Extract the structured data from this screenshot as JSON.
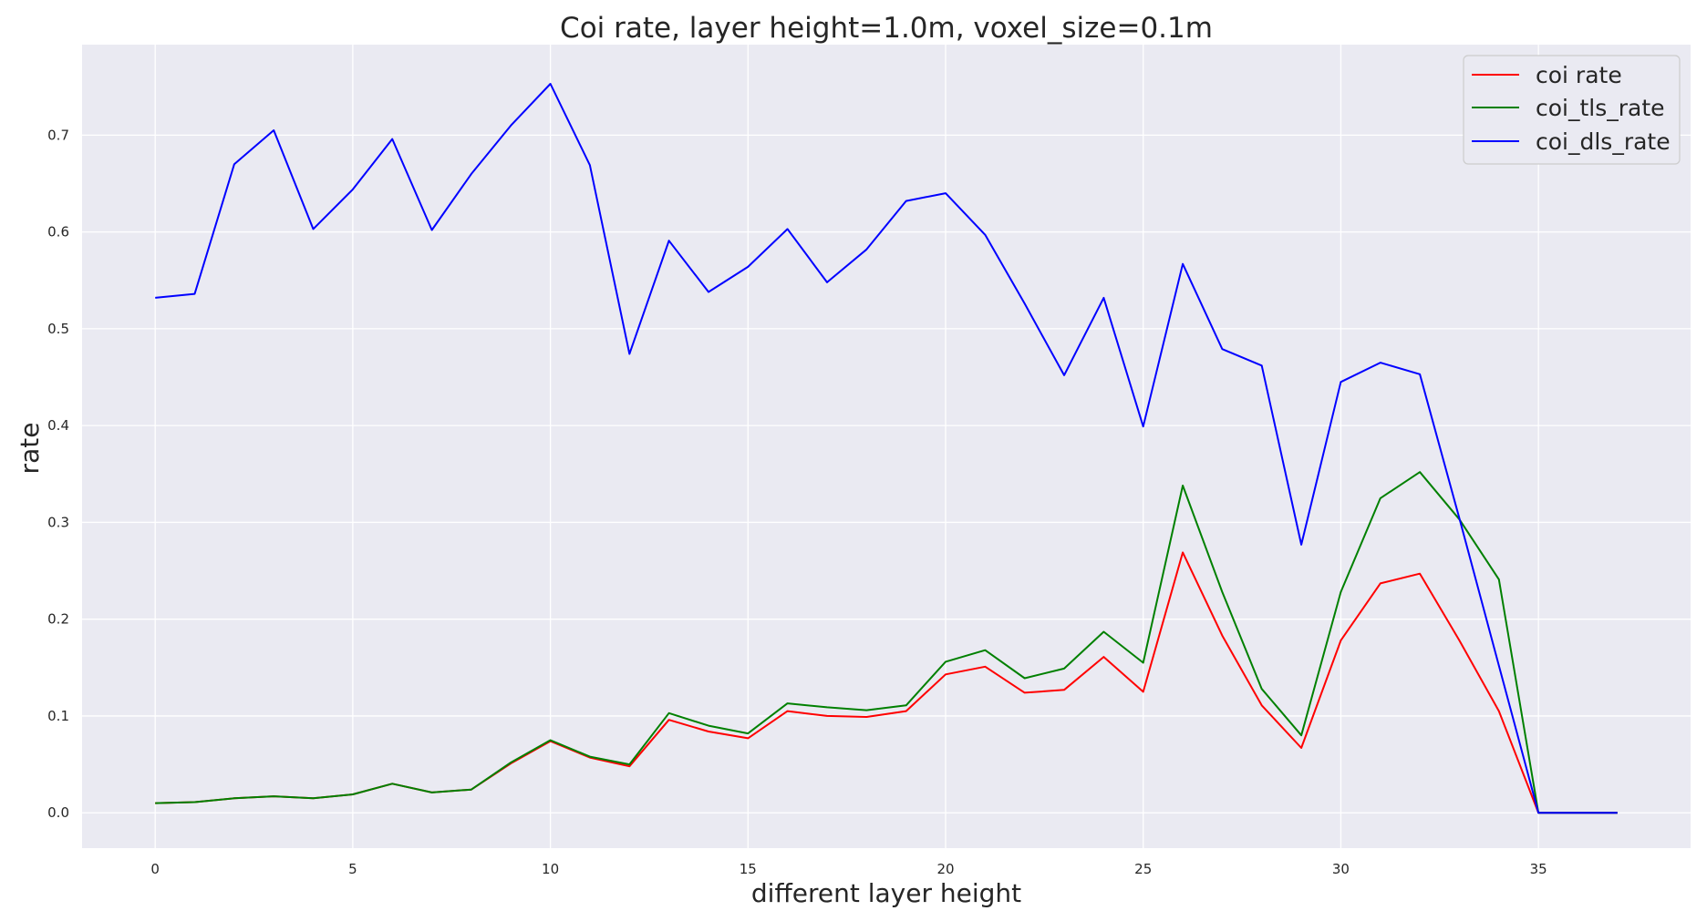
{
  "chart_data": {
    "type": "line",
    "title": "Coi rate, layer height=1.0m, voxel_size=0.1m",
    "xlabel": "different layer height",
    "ylabel": "rate",
    "xlim": [
      -1.85,
      38.85
    ],
    "ylim": [
      -0.0365,
      0.7935
    ],
    "xticks": [
      "0",
      "5",
      "10",
      "15",
      "20",
      "25",
      "30",
      "35"
    ],
    "yticks": [
      "0.0",
      "0.1",
      "0.2",
      "0.3",
      "0.4",
      "0.5",
      "0.6",
      "0.7"
    ],
    "grid": true,
    "legend_position": "upper right",
    "background_color": "#eaeaf2",
    "x": [
      0,
      1,
      2,
      3,
      4,
      5,
      6,
      7,
      8,
      9,
      10,
      11,
      12,
      13,
      14,
      15,
      16,
      17,
      18,
      19,
      20,
      21,
      22,
      23,
      24,
      25,
      26,
      27,
      28,
      29,
      30,
      31,
      32,
      33,
      34,
      35,
      36,
      37
    ],
    "series": [
      {
        "name": "coi rate",
        "color": "#ff0000",
        "values": [
          0.01,
          0.011,
          0.015,
          0.017,
          0.015,
          0.019,
          0.03,
          0.021,
          0.024,
          0.051,
          0.074,
          0.057,
          0.048,
          0.096,
          0.084,
          0.077,
          0.105,
          0.1,
          0.099,
          0.105,
          0.143,
          0.151,
          0.124,
          0.127,
          0.161,
          0.125,
          0.269,
          0.183,
          0.111,
          0.067,
          0.178,
          0.237,
          0.247,
          0.178,
          0.105,
          0.0,
          0.0,
          0.0
        ]
      },
      {
        "name": "coi_tls_rate",
        "color": "#008000",
        "values": [
          0.01,
          0.011,
          0.015,
          0.017,
          0.015,
          0.019,
          0.03,
          0.021,
          0.024,
          0.052,
          0.075,
          0.058,
          0.05,
          0.103,
          0.09,
          0.082,
          0.113,
          0.109,
          0.106,
          0.111,
          0.156,
          0.168,
          0.139,
          0.149,
          0.187,
          0.155,
          0.338,
          0.228,
          0.128,
          0.08,
          0.228,
          0.325,
          0.352,
          0.303,
          0.241,
          0.0,
          0.0,
          0.0
        ]
      },
      {
        "name": "coi_dls_rate",
        "color": "#0000ff",
        "values": [
          0.532,
          0.536,
          0.67,
          0.705,
          0.603,
          0.644,
          0.696,
          0.602,
          0.66,
          0.71,
          0.753,
          0.669,
          0.474,
          0.591,
          0.538,
          0.564,
          0.603,
          0.548,
          0.582,
          0.632,
          0.64,
          0.597,
          0.526,
          0.452,
          0.532,
          0.399,
          0.567,
          0.479,
          0.462,
          0.277,
          0.445,
          0.465,
          0.453,
          0.304,
          0.152,
          0.0,
          0.0,
          0.0
        ]
      }
    ]
  }
}
